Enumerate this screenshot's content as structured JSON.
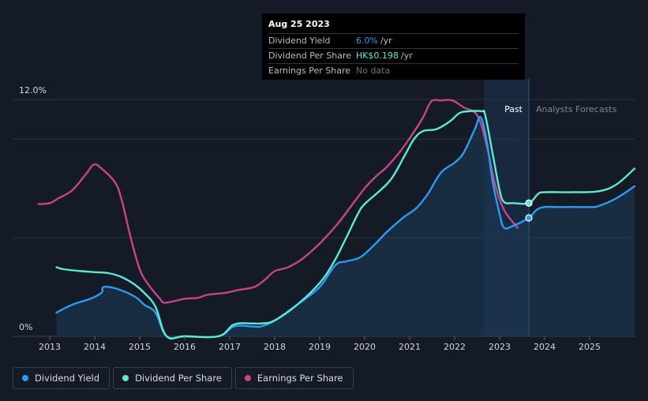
{
  "tooltip": {
    "date": "Aug 25 2023",
    "rows": [
      {
        "label": "Dividend Yield",
        "value": "6.0%",
        "unit": "/yr",
        "color": "#2d9cf0"
      },
      {
        "label": "Dividend Per Share",
        "value": "HK$0.198",
        "unit": "/yr",
        "color": "#5ee8d3"
      },
      {
        "label": "Earnings Per Share",
        "value": "No data",
        "unit": "",
        "color": "#6b717b"
      }
    ]
  },
  "regions": {
    "past_label": "Past",
    "forecast_label": "Analysts Forecasts"
  },
  "legend": [
    {
      "label": "Dividend Yield",
      "color": "#2d9cf0"
    },
    {
      "label": "Dividend Per Share",
      "color": "#5ee8d3"
    },
    {
      "label": "Earnings Per Share",
      "color": "#c6448a"
    }
  ],
  "chart_data": {
    "type": "line",
    "y_axis": {
      "min": 0,
      "max": 12,
      "tick_labels": [
        {
          "value": 12,
          "label": "12.0%"
        },
        {
          "value": 0,
          "label": "0%"
        }
      ]
    },
    "x_axis": {
      "min": 2012.7,
      "max": 2026.0,
      "ticks": [
        "2013",
        "2014",
        "2015",
        "2016",
        "2017",
        "2018",
        "2019",
        "2020",
        "2021",
        "2022",
        "2023",
        "2024",
        "2025"
      ]
    },
    "past_forecast_boundary": 2023.65,
    "highlight_band": [
      2022.65,
      2023.65
    ],
    "series": [
      {
        "name": "Dividend Yield",
        "color": "#2d9cf0",
        "unit": "%",
        "points": [
          [
            2013.15,
            1.2
          ],
          [
            2013.5,
            1.6
          ],
          [
            2013.9,
            1.9
          ],
          [
            2014.15,
            2.2
          ],
          [
            2014.2,
            2.5
          ],
          [
            2014.5,
            2.4
          ],
          [
            2014.9,
            2.0
          ],
          [
            2015.1,
            1.6
          ],
          [
            2015.35,
            1.2
          ],
          [
            2015.6,
            0.0
          ],
          [
            2016.0,
            0.0
          ],
          [
            2016.75,
            0.0
          ],
          [
            2017.1,
            0.5
          ],
          [
            2017.5,
            0.5
          ],
          [
            2017.7,
            0.5
          ],
          [
            2018.0,
            0.8
          ],
          [
            2018.5,
            1.6
          ],
          [
            2019.0,
            2.5
          ],
          [
            2019.35,
            3.6
          ],
          [
            2019.6,
            3.8
          ],
          [
            2019.9,
            4.0
          ],
          [
            2020.2,
            4.6
          ],
          [
            2020.5,
            5.3
          ],
          [
            2020.85,
            6.0
          ],
          [
            2021.15,
            6.5
          ],
          [
            2021.4,
            7.2
          ],
          [
            2021.7,
            8.3
          ],
          [
            2022.0,
            8.8
          ],
          [
            2022.2,
            9.3
          ],
          [
            2022.45,
            10.5
          ],
          [
            2022.58,
            11.1
          ],
          [
            2022.72,
            9.8
          ],
          [
            2022.85,
            7.8
          ],
          [
            2023.0,
            6.2
          ],
          [
            2023.1,
            5.5
          ],
          [
            2023.3,
            5.6
          ],
          [
            2023.65,
            6.0
          ],
          [
            2023.9,
            6.5
          ],
          [
            2024.4,
            6.55
          ],
          [
            2025.0,
            6.55
          ],
          [
            2025.2,
            6.6
          ],
          [
            2025.6,
            7.0
          ],
          [
            2026.0,
            7.6
          ]
        ]
      },
      {
        "name": "Dividend Per Share",
        "color": "#5ee8d3",
        "unit": "HK$",
        "points": [
          [
            2013.15,
            3.5
          ],
          [
            2013.3,
            3.4
          ],
          [
            2013.7,
            3.3
          ],
          [
            2014.0,
            3.25
          ],
          [
            2014.3,
            3.2
          ],
          [
            2014.6,
            3.0
          ],
          [
            2014.9,
            2.6
          ],
          [
            2015.1,
            2.2
          ],
          [
            2015.35,
            1.5
          ],
          [
            2015.6,
            0.0
          ],
          [
            2016.0,
            0.0
          ],
          [
            2016.75,
            0.0
          ],
          [
            2017.1,
            0.6
          ],
          [
            2017.5,
            0.65
          ],
          [
            2017.7,
            0.65
          ],
          [
            2018.0,
            0.8
          ],
          [
            2018.5,
            1.6
          ],
          [
            2019.0,
            2.7
          ],
          [
            2019.3,
            3.7
          ],
          [
            2019.55,
            4.8
          ],
          [
            2019.85,
            6.2
          ],
          [
            2020.0,
            6.7
          ],
          [
            2020.3,
            7.3
          ],
          [
            2020.6,
            8.0
          ],
          [
            2020.9,
            9.2
          ],
          [
            2021.1,
            10.0
          ],
          [
            2021.3,
            10.4
          ],
          [
            2021.6,
            10.5
          ],
          [
            2021.9,
            10.9
          ],
          [
            2022.1,
            11.3
          ],
          [
            2022.3,
            11.4
          ],
          [
            2022.6,
            11.4
          ],
          [
            2022.68,
            11.2
          ],
          [
            2022.85,
            9.2
          ],
          [
            2023.0,
            7.4
          ],
          [
            2023.1,
            6.8
          ],
          [
            2023.3,
            6.75
          ],
          [
            2023.65,
            6.75
          ],
          [
            2023.85,
            7.2
          ],
          [
            2024.0,
            7.3
          ],
          [
            2024.6,
            7.3
          ],
          [
            2025.2,
            7.35
          ],
          [
            2025.6,
            7.7
          ],
          [
            2026.0,
            8.5
          ]
        ]
      },
      {
        "name": "Earnings Per Share",
        "color": "#c6448a",
        "unit": "HK$",
        "points": [
          [
            2012.75,
            6.7
          ],
          [
            2013.0,
            6.75
          ],
          [
            2013.2,
            7.0
          ],
          [
            2013.5,
            7.4
          ],
          [
            2013.8,
            8.2
          ],
          [
            2013.98,
            8.7
          ],
          [
            2014.15,
            8.5
          ],
          [
            2014.45,
            7.8
          ],
          [
            2014.6,
            6.9
          ],
          [
            2014.8,
            5.0
          ],
          [
            2015.0,
            3.4
          ],
          [
            2015.2,
            2.6
          ],
          [
            2015.45,
            1.9
          ],
          [
            2015.55,
            1.7
          ],
          [
            2015.8,
            1.8
          ],
          [
            2016.0,
            1.9
          ],
          [
            2016.3,
            1.95
          ],
          [
            2016.5,
            2.1
          ],
          [
            2016.9,
            2.2
          ],
          [
            2017.2,
            2.35
          ],
          [
            2017.55,
            2.5
          ],
          [
            2017.8,
            2.9
          ],
          [
            2018.0,
            3.3
          ],
          [
            2018.3,
            3.5
          ],
          [
            2018.6,
            3.9
          ],
          [
            2019.0,
            4.7
          ],
          [
            2019.4,
            5.7
          ],
          [
            2019.7,
            6.6
          ],
          [
            2020.0,
            7.5
          ],
          [
            2020.25,
            8.1
          ],
          [
            2020.5,
            8.6
          ],
          [
            2020.8,
            9.4
          ],
          [
            2021.05,
            10.2
          ],
          [
            2021.3,
            11.1
          ],
          [
            2021.48,
            11.9
          ],
          [
            2021.7,
            11.95
          ],
          [
            2021.95,
            11.95
          ],
          [
            2022.2,
            11.6
          ],
          [
            2022.5,
            11.2
          ],
          [
            2022.7,
            9.8
          ],
          [
            2022.9,
            7.7
          ],
          [
            2023.1,
            6.4
          ],
          [
            2023.4,
            5.5
          ]
        ]
      }
    ],
    "markers": [
      {
        "series": "Dividend Per Share",
        "x": 2023.65,
        "y": 6.75
      },
      {
        "series": "Dividend Yield",
        "x": 2023.65,
        "y": 6.0
      }
    ]
  }
}
